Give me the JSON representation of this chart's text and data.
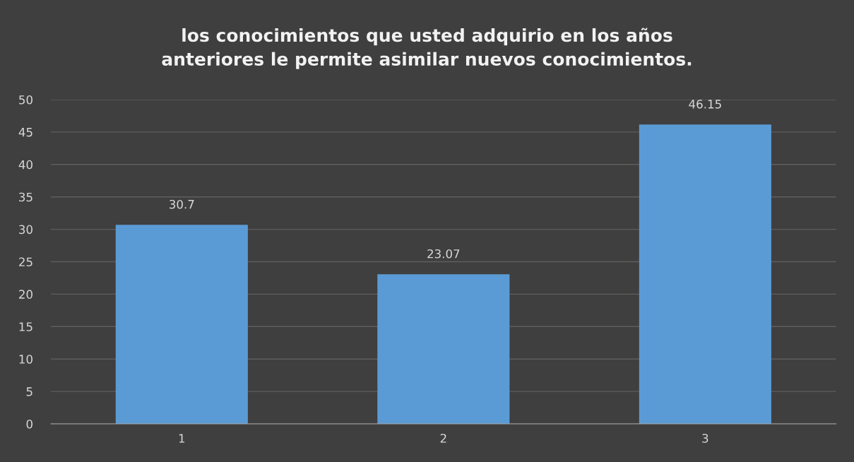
{
  "chart_data": {
    "type": "bar",
    "title": "los conocimientos que usted adquirio en los años\nanteriores le permite asimilar nuevos conocimientos.",
    "categories": [
      "1",
      "2",
      "3"
    ],
    "values": [
      30.7,
      23.07,
      46.15
    ],
    "color": "#5b9bd5",
    "ylim": [
      0,
      50
    ],
    "yticks": [
      0,
      5,
      10,
      15,
      20,
      25,
      30,
      35,
      40,
      45,
      50
    ],
    "grid": "y",
    "data_labels": true
  }
}
